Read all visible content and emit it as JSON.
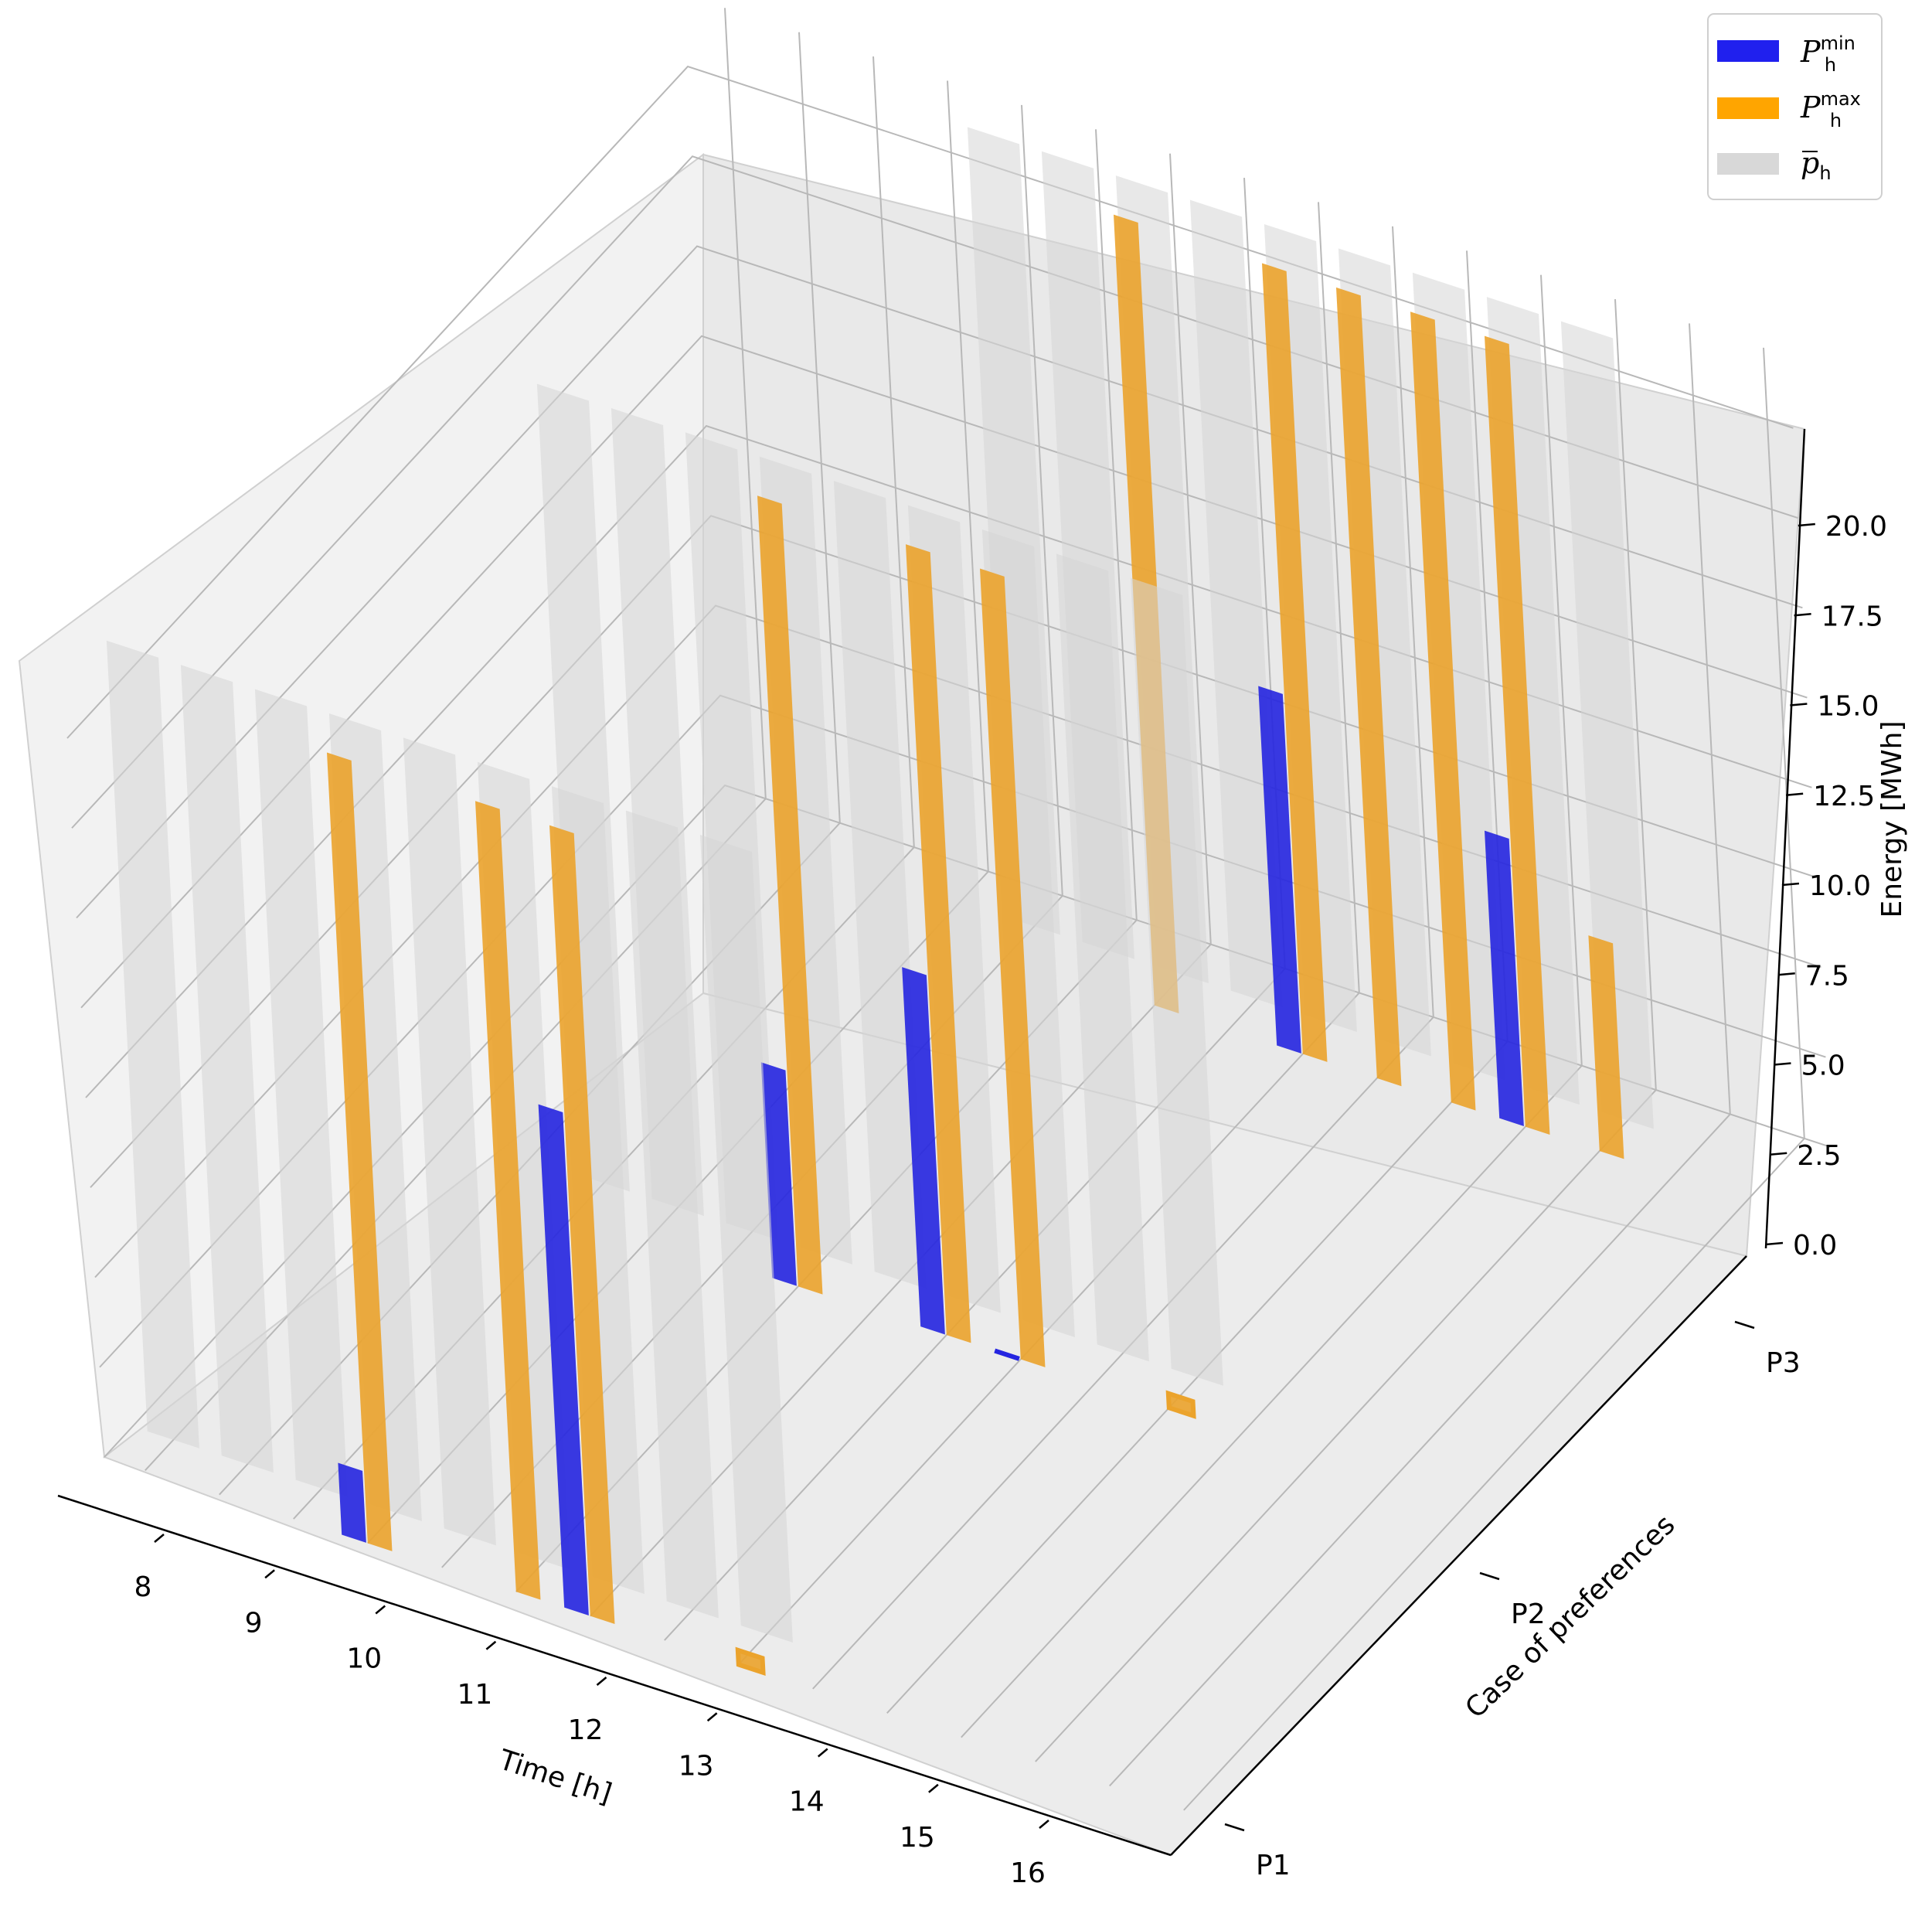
{
  "chart_data": {
    "type": "bar3d",
    "title": "",
    "xlabel": "Time [h]",
    "ylabel": "Case of preferences",
    "zlabel": "Energy [MWh]",
    "x_categories": [
      "8",
      "9",
      "10",
      "11",
      "12",
      "13",
      "14",
      "15",
      "16"
    ],
    "y_categories": [
      "P1",
      "P2",
      "P3"
    ],
    "z_ticks": [
      "0.0",
      "2.5",
      "5.0",
      "7.5",
      "10.0",
      "12.5",
      "15.0",
      "17.5",
      "20.0"
    ],
    "zlim": [
      0,
      22
    ],
    "legend": {
      "position": "top-right",
      "entries": [
        {
          "base": "P",
          "sub": "h",
          "sup": "min",
          "color": "#2020ee"
        },
        {
          "base": "P",
          "sub": "h",
          "sup": "max",
          "color": "#ffa500"
        },
        {
          "base": "p",
          "sub": "h",
          "sup": "",
          "overline": true,
          "color": "#d8d8d8"
        }
      ]
    },
    "colors": {
      "pmin": "#2525e0",
      "pmax": "#eba32c",
      "pbar": "#d6d6d6"
    },
    "series": [
      {
        "name": "P_h^max",
        "case": "P1",
        "hours": [
          11,
          13,
          14,
          16
        ],
        "values": [
          22,
          22,
          22,
          0.4
        ]
      },
      {
        "name": "P_h^min",
        "case": "P1",
        "hours": [
          11,
          14
        ],
        "values": [
          2,
          14
        ]
      },
      {
        "name": "p_bar_h",
        "case": "P1",
        "hours": [
          8,
          9,
          10,
          11,
          12,
          13,
          14,
          15,
          16
        ],
        "values": [
          22,
          22,
          22,
          22,
          22,
          22,
          22,
          22,
          22
        ]
      },
      {
        "name": "P_h^max",
        "case": "P2",
        "hours": [
          13,
          15,
          16
        ],
        "values": [
          22,
          22,
          22
        ]
      },
      {
        "name": "P_h^min",
        "case": "P2",
        "hours": [
          13,
          15,
          16
        ],
        "values": [
          6,
          10,
          0
        ]
      },
      {
        "name": "P_h^max",
        "case": "P2",
        "hours": [
          18
        ],
        "values": [
          0.4
        ]
      },
      {
        "name": "p_bar_h",
        "case": "P2",
        "hours": [
          10,
          11,
          12,
          13,
          14,
          15,
          16,
          17,
          18
        ],
        "values": [
          22,
          22,
          22,
          22,
          22,
          22,
          22,
          22,
          22
        ]
      },
      {
        "name": "P_h^max",
        "case": "P3",
        "hours": [
          14,
          16,
          17,
          18,
          19,
          20
        ],
        "values": [
          22,
          22,
          22,
          22,
          22,
          6
        ]
      },
      {
        "name": "P_h^min",
        "case": "P3",
        "hours": [
          16,
          19
        ],
        "values": [
          10,
          8
        ]
      },
      {
        "name": "p_bar_h",
        "case": "P3",
        "hours": [
          12,
          13,
          14,
          15,
          16,
          17,
          18,
          19,
          20
        ],
        "values": [
          22,
          22,
          22,
          22,
          22,
          22,
          22,
          22,
          22
        ]
      }
    ]
  }
}
